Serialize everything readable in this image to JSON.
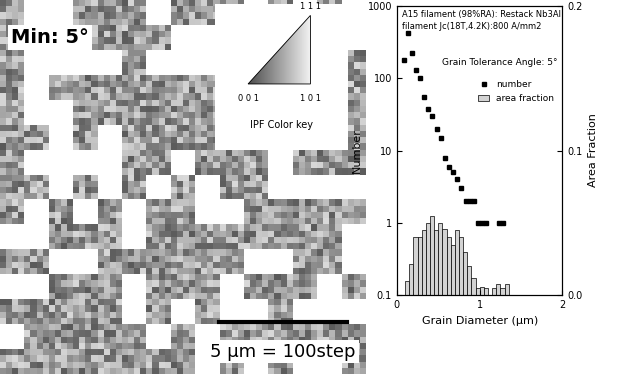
{
  "micrograph": {
    "label": "Min: 5°",
    "scale_bar": "5 μm = 100step",
    "ipf_key": {
      "title": "IPF Color key",
      "corners": [
        "0 0 1",
        "1 0 1",
        "1 1 1"
      ]
    }
  },
  "chart_data": {
    "type": "bar_and_scatter",
    "annotations": [
      "A15 filament (98%RA): Restack Nb3Al",
      "filament Jc(18T,4.2K):800 A/mm2",
      "Grain Tolerance Angle: 5°"
    ],
    "x_label": "Grain Diameter (μm)",
    "y_label": "Number",
    "y2_label": "Area Fraction",
    "xlim": [
      0,
      2
    ],
    "xticks": [
      0,
      1,
      2
    ],
    "ylim": [
      0.1,
      1000
    ],
    "yticks": [
      0.1,
      1,
      10,
      100,
      1000
    ],
    "log": "y",
    "y2lim": [
      0,
      0.2
    ],
    "y2ticks": [
      0.0,
      0.1,
      0.2
    ],
    "legend": "upper right",
    "series": [
      {
        "name": "number",
        "type": "scatter",
        "marker": "square",
        "color": "#000000",
        "x": [
          0.08,
          0.13,
          0.18,
          0.23,
          0.28,
          0.33,
          0.38,
          0.43,
          0.48,
          0.53,
          0.58,
          0.63,
          0.68,
          0.73,
          0.78,
          0.83,
          0.88,
          0.93,
          0.98,
          1.03,
          1.08,
          1.23,
          1.28
        ],
        "values": [
          180,
          420,
          220,
          130,
          100,
          55,
          38,
          30,
          20,
          15,
          8,
          6,
          5,
          4,
          3,
          2,
          2,
          2,
          1,
          1,
          1,
          1,
          1
        ]
      },
      {
        "name": "area fraction",
        "type": "histogram",
        "axis": "y2",
        "color": "#d3d3d3",
        "bins": [
          0.1,
          0.15,
          0.2,
          0.25,
          0.3,
          0.35,
          0.4,
          0.45,
          0.5,
          0.55,
          0.6,
          0.65,
          0.7,
          0.75,
          0.8,
          0.85,
          0.9,
          0.95,
          1.0,
          1.05,
          1.1,
          1.15,
          1.2,
          1.25,
          1.3,
          1.35
        ],
        "values": [
          0.01,
          0.022,
          0.04,
          0.04,
          0.045,
          0.05,
          0.055,
          0.045,
          0.05,
          0.046,
          0.04,
          0.035,
          0.045,
          0.04,
          0.03,
          0.02,
          0.012,
          0.005,
          0.006,
          0.005,
          0.0,
          0.005,
          0.008,
          0.005,
          0.008
        ]
      }
    ]
  }
}
